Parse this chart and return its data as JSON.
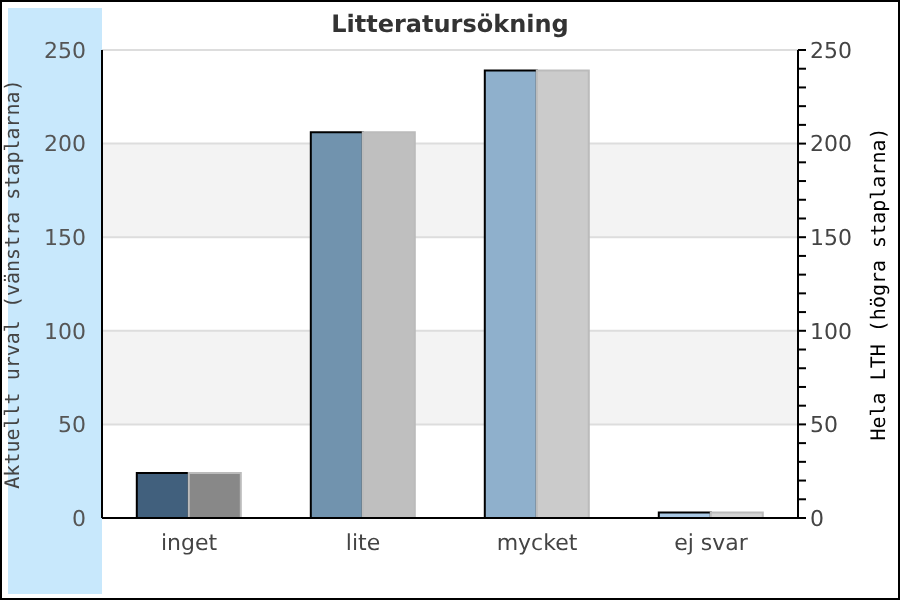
{
  "chart_data": {
    "type": "bar",
    "title": "Litteratursökning",
    "ylabel": "Aktuellt urval (vänstra staplarna)",
    "y2label": "Hela LTH (högra staplarna)",
    "categories": [
      "inget",
      "lite",
      "mycket",
      "ej svar"
    ],
    "series": [
      {
        "colors": [
          "#41607d",
          "#7193ae",
          "#8fb0cc",
          "#a9c8e4"
        ],
        "values": [
          24,
          206,
          239,
          3
        ]
      },
      {
        "colors": [
          "#888888",
          "#bfbfbf",
          "#cbcbcb",
          "#d4d4d4"
        ],
        "values": [
          24,
          206,
          239,
          3
        ],
        "axis": "y2"
      }
    ],
    "ylim": [
      0,
      250
    ],
    "yticks": [
      0,
      50,
      100,
      150,
      200,
      250
    ],
    "y2lim": [
      0,
      250
    ],
    "y2ticks": [
      0,
      {
        "value": 10,
        "label": null
      },
      {
        "value": 20,
        "label": null
      },
      {
        "value": 30,
        "label": null
      },
      {
        "value": 40,
        "label": null
      },
      50,
      {
        "value": 60,
        "label": null
      },
      {
        "value": 70,
        "label": null
      },
      {
        "value": 80,
        "label": null
      },
      {
        "value": 90,
        "label": null
      },
      100,
      {
        "value": 110,
        "label": null
      },
      {
        "value": 120,
        "label": null
      },
      {
        "value": 130,
        "label": null
      },
      {
        "value": 140,
        "label": null
      },
      150,
      {
        "value": 160,
        "label": null
      },
      {
        "value": 170,
        "label": null
      },
      {
        "value": 180,
        "label": null
      },
      {
        "value": 190,
        "label": null
      },
      200,
      {
        "value": 210,
        "label": null
      },
      {
        "value": 220,
        "label": null
      },
      {
        "value": 230,
        "label": null
      },
      {
        "value": 240,
        "label": null
      },
      250
    ],
    "grid": "y"
  }
}
